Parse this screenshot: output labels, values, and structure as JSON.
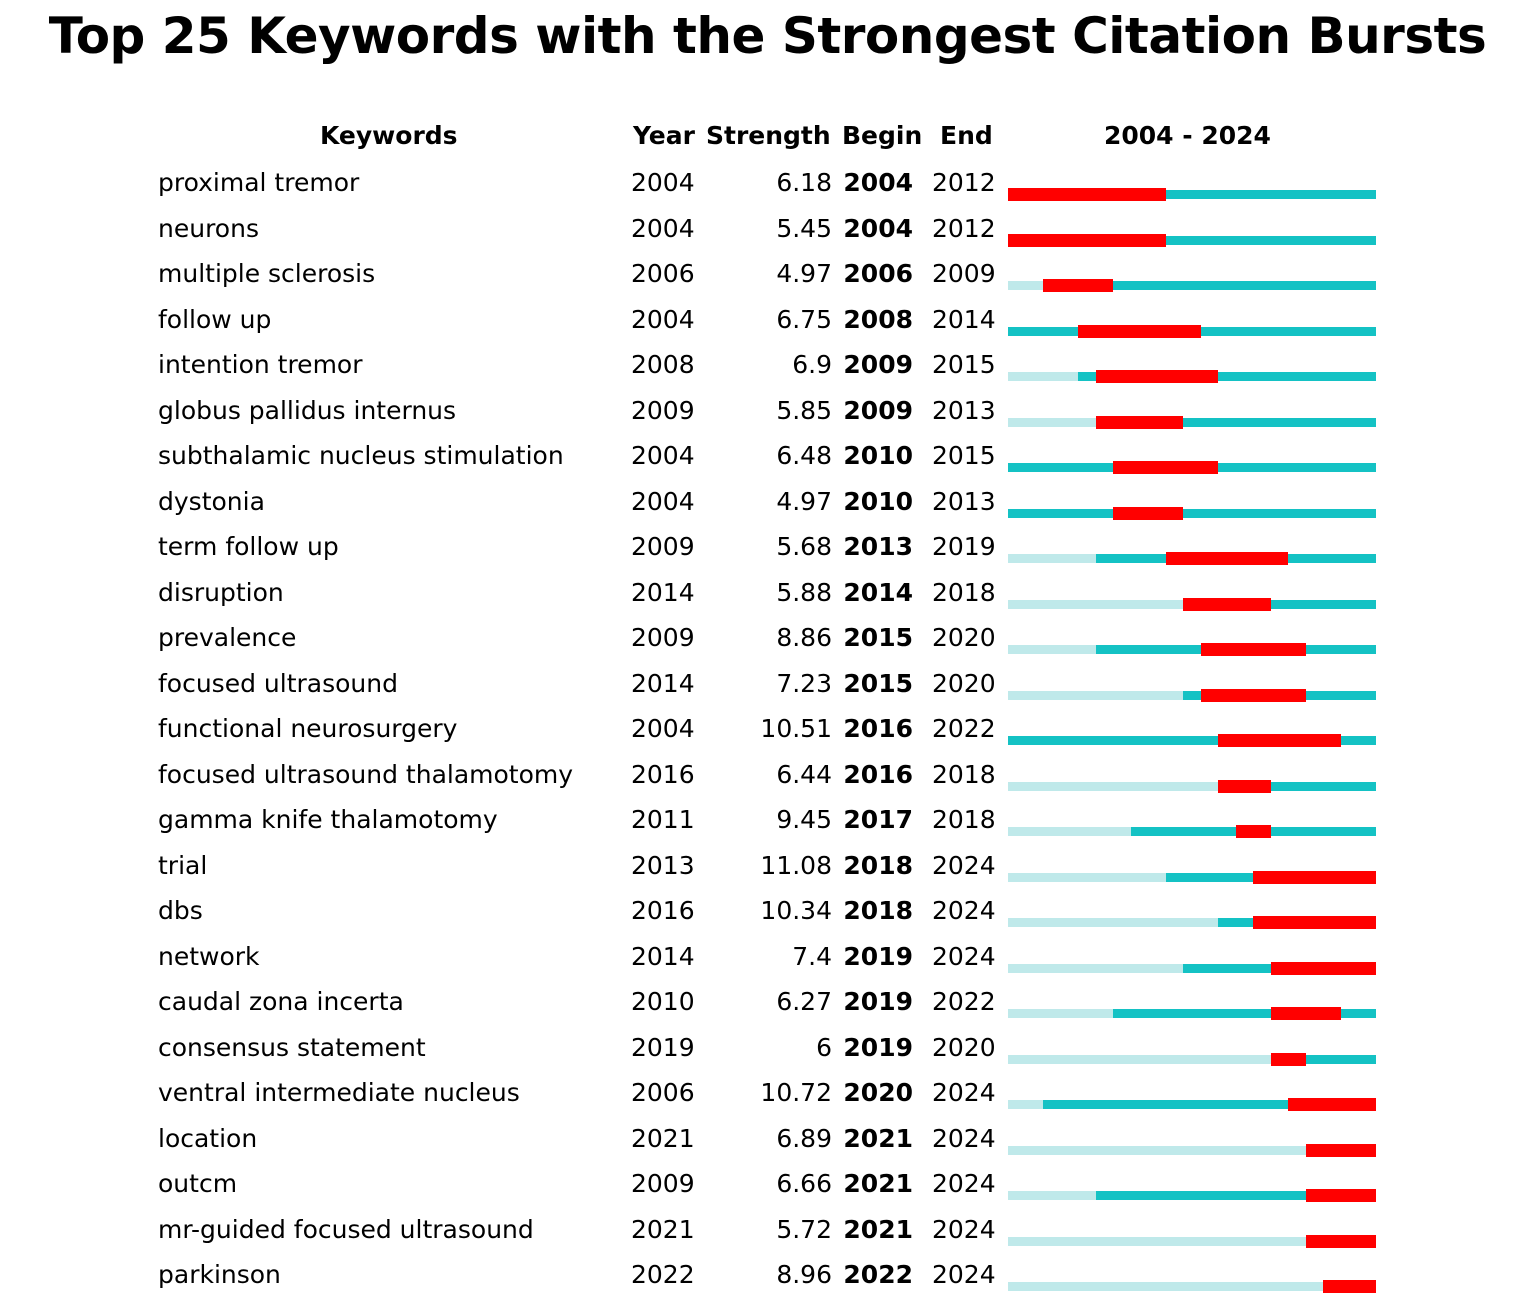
{
  "colors": {
    "before": "#bfe9ea",
    "active": "#14c2c4",
    "burst": "#ff0000"
  },
  "chart_data": {
    "type": "table",
    "title": "Top 25 Keywords with the Strongest Citation Bursts",
    "columns": [
      "Keywords",
      "Year",
      "Strength",
      "Begin",
      "End",
      "2004 - 2024"
    ],
    "timeline_range": [
      2004,
      2024
    ],
    "rows": [
      {
        "keyword": "proximal tremor",
        "year": "2004",
        "strength": "6.18",
        "begin": "2004",
        "end": "2012"
      },
      {
        "keyword": "neurons",
        "year": "2004",
        "strength": "5.45",
        "begin": "2004",
        "end": "2012"
      },
      {
        "keyword": "multiple sclerosis",
        "year": "2006",
        "strength": "4.97",
        "begin": "2006",
        "end": "2009"
      },
      {
        "keyword": "follow up",
        "year": "2004",
        "strength": "6.75",
        "begin": "2008",
        "end": "2014"
      },
      {
        "keyword": "intention tremor",
        "year": "2008",
        "strength": "6.9",
        "begin": "2009",
        "end": "2015"
      },
      {
        "keyword": "globus pallidus internus",
        "year": "2009",
        "strength": "5.85",
        "begin": "2009",
        "end": "2013"
      },
      {
        "keyword": "subthalamic nucleus stimulation",
        "year": "2004",
        "strength": "6.48",
        "begin": "2010",
        "end": "2015"
      },
      {
        "keyword": "dystonia",
        "year": "2004",
        "strength": "4.97",
        "begin": "2010",
        "end": "2013"
      },
      {
        "keyword": "term follow up",
        "year": "2009",
        "strength": "5.68",
        "begin": "2013",
        "end": "2019"
      },
      {
        "keyword": "disruption",
        "year": "2014",
        "strength": "5.88",
        "begin": "2014",
        "end": "2018"
      },
      {
        "keyword": "prevalence",
        "year": "2009",
        "strength": "8.86",
        "begin": "2015",
        "end": "2020"
      },
      {
        "keyword": "focused ultrasound",
        "year": "2014",
        "strength": "7.23",
        "begin": "2015",
        "end": "2020"
      },
      {
        "keyword": "functional neurosurgery",
        "year": "2004",
        "strength": "10.51",
        "begin": "2016",
        "end": "2022"
      },
      {
        "keyword": "focused ultrasound thalamotomy",
        "year": "2016",
        "strength": "6.44",
        "begin": "2016",
        "end": "2018"
      },
      {
        "keyword": "gamma knife thalamotomy",
        "year": "2011",
        "strength": "9.45",
        "begin": "2017",
        "end": "2018"
      },
      {
        "keyword": "trial",
        "year": "2013",
        "strength": "11.08",
        "begin": "2018",
        "end": "2024"
      },
      {
        "keyword": "dbs",
        "year": "2016",
        "strength": "10.34",
        "begin": "2018",
        "end": "2024"
      },
      {
        "keyword": "network",
        "year": "2014",
        "strength": "7.4",
        "begin": "2019",
        "end": "2024"
      },
      {
        "keyword": "caudal zona incerta",
        "year": "2010",
        "strength": "6.27",
        "begin": "2019",
        "end": "2022"
      },
      {
        "keyword": "consensus statement",
        "year": "2019",
        "strength": "6",
        "begin": "2019",
        "end": "2020"
      },
      {
        "keyword": "ventral intermediate nucleus",
        "year": "2006",
        "strength": "10.72",
        "begin": "2020",
        "end": "2024"
      },
      {
        "keyword": "location",
        "year": "2021",
        "strength": "6.89",
        "begin": "2021",
        "end": "2024"
      },
      {
        "keyword": "outcm",
        "year": "2009",
        "strength": "6.66",
        "begin": "2021",
        "end": "2024"
      },
      {
        "keyword": "mr-guided focused ultrasound",
        "year": "2021",
        "strength": "5.72",
        "begin": "2021",
        "end": "2024"
      },
      {
        "keyword": "parkinson",
        "year": "2022",
        "strength": "8.96",
        "begin": "2022",
        "end": "2024"
      }
    ]
  }
}
